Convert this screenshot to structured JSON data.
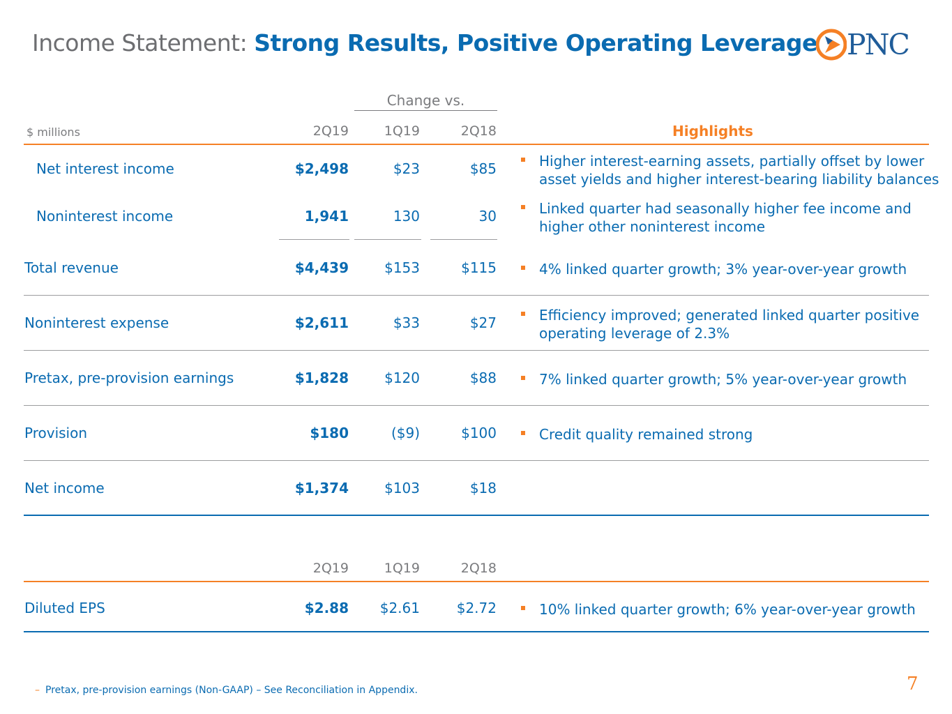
{
  "title": {
    "light": "Income Statement: ",
    "bold": "Strong Results, Positive Operating Leverage"
  },
  "logo": {
    "text": "PNC",
    "icon": "pnc-triangle-logo",
    "color_orange": "#f58025",
    "color_blue": "#1f5c99"
  },
  "colors": {
    "accent": "#f58025",
    "primary": "#0a6bb1",
    "muted": "#7a7b7e"
  },
  "table": {
    "change_label": "Change vs.",
    "unit": "$ millions",
    "columns": [
      "2Q19",
      "1Q19",
      "2Q18"
    ],
    "highlights_label": "Highlights",
    "rows": [
      {
        "label": "Net interest income",
        "v1": "$2,498",
        "v2": "$23",
        "v3": "$85",
        "bullet1": "Higher interest-earning assets, partially offset by lower",
        "bullet2": "asset yields and higher interest-bearing liability balances"
      },
      {
        "label": "Noninterest income",
        "v1": "1,941",
        "v2": "130",
        "v3": "30",
        "bullet1": "Linked quarter had seasonally higher fee income and",
        "bullet2": "higher other noninterest income"
      },
      {
        "label": "Total revenue",
        "v1": "$4,439",
        "v2": "$153",
        "v3": "$115",
        "bullet1": "4% linked quarter growth; 3% year-over-year growth"
      },
      {
        "label": "Noninterest expense",
        "v1": "$2,611",
        "v2": "$33",
        "v3": "$27",
        "bullet1": "Efficiency improved; generated linked quarter positive",
        "bullet2": "operating leverage of 2.3%"
      },
      {
        "label": "Pretax, pre-provision earnings",
        "v1": "$1,828",
        "v2": "$120",
        "v3": "$88",
        "bullet1": "7% linked quarter growth; 5% year-over-year growth"
      },
      {
        "label": "Provision",
        "v1": "$180",
        "v2": "($9)",
        "v3": "$100",
        "bullet1": "Credit quality remained strong"
      },
      {
        "label": "Net income",
        "v1": "$1,374",
        "v2": "$103",
        "v3": "$18"
      }
    ]
  },
  "eps_table": {
    "columns": [
      "2Q19",
      "1Q19",
      "2Q18"
    ],
    "label": "Diluted EPS",
    "v1": "$2.88",
    "v2": "$2.61",
    "v3": "$2.72",
    "bullet1": "10% linked quarter growth; 6% year-over-year growth"
  },
  "footnote": {
    "dash": "–",
    "text": "Pretax, pre-provision earnings (Non-GAAP) – See Reconciliation in Appendix."
  },
  "page_number": "7"
}
